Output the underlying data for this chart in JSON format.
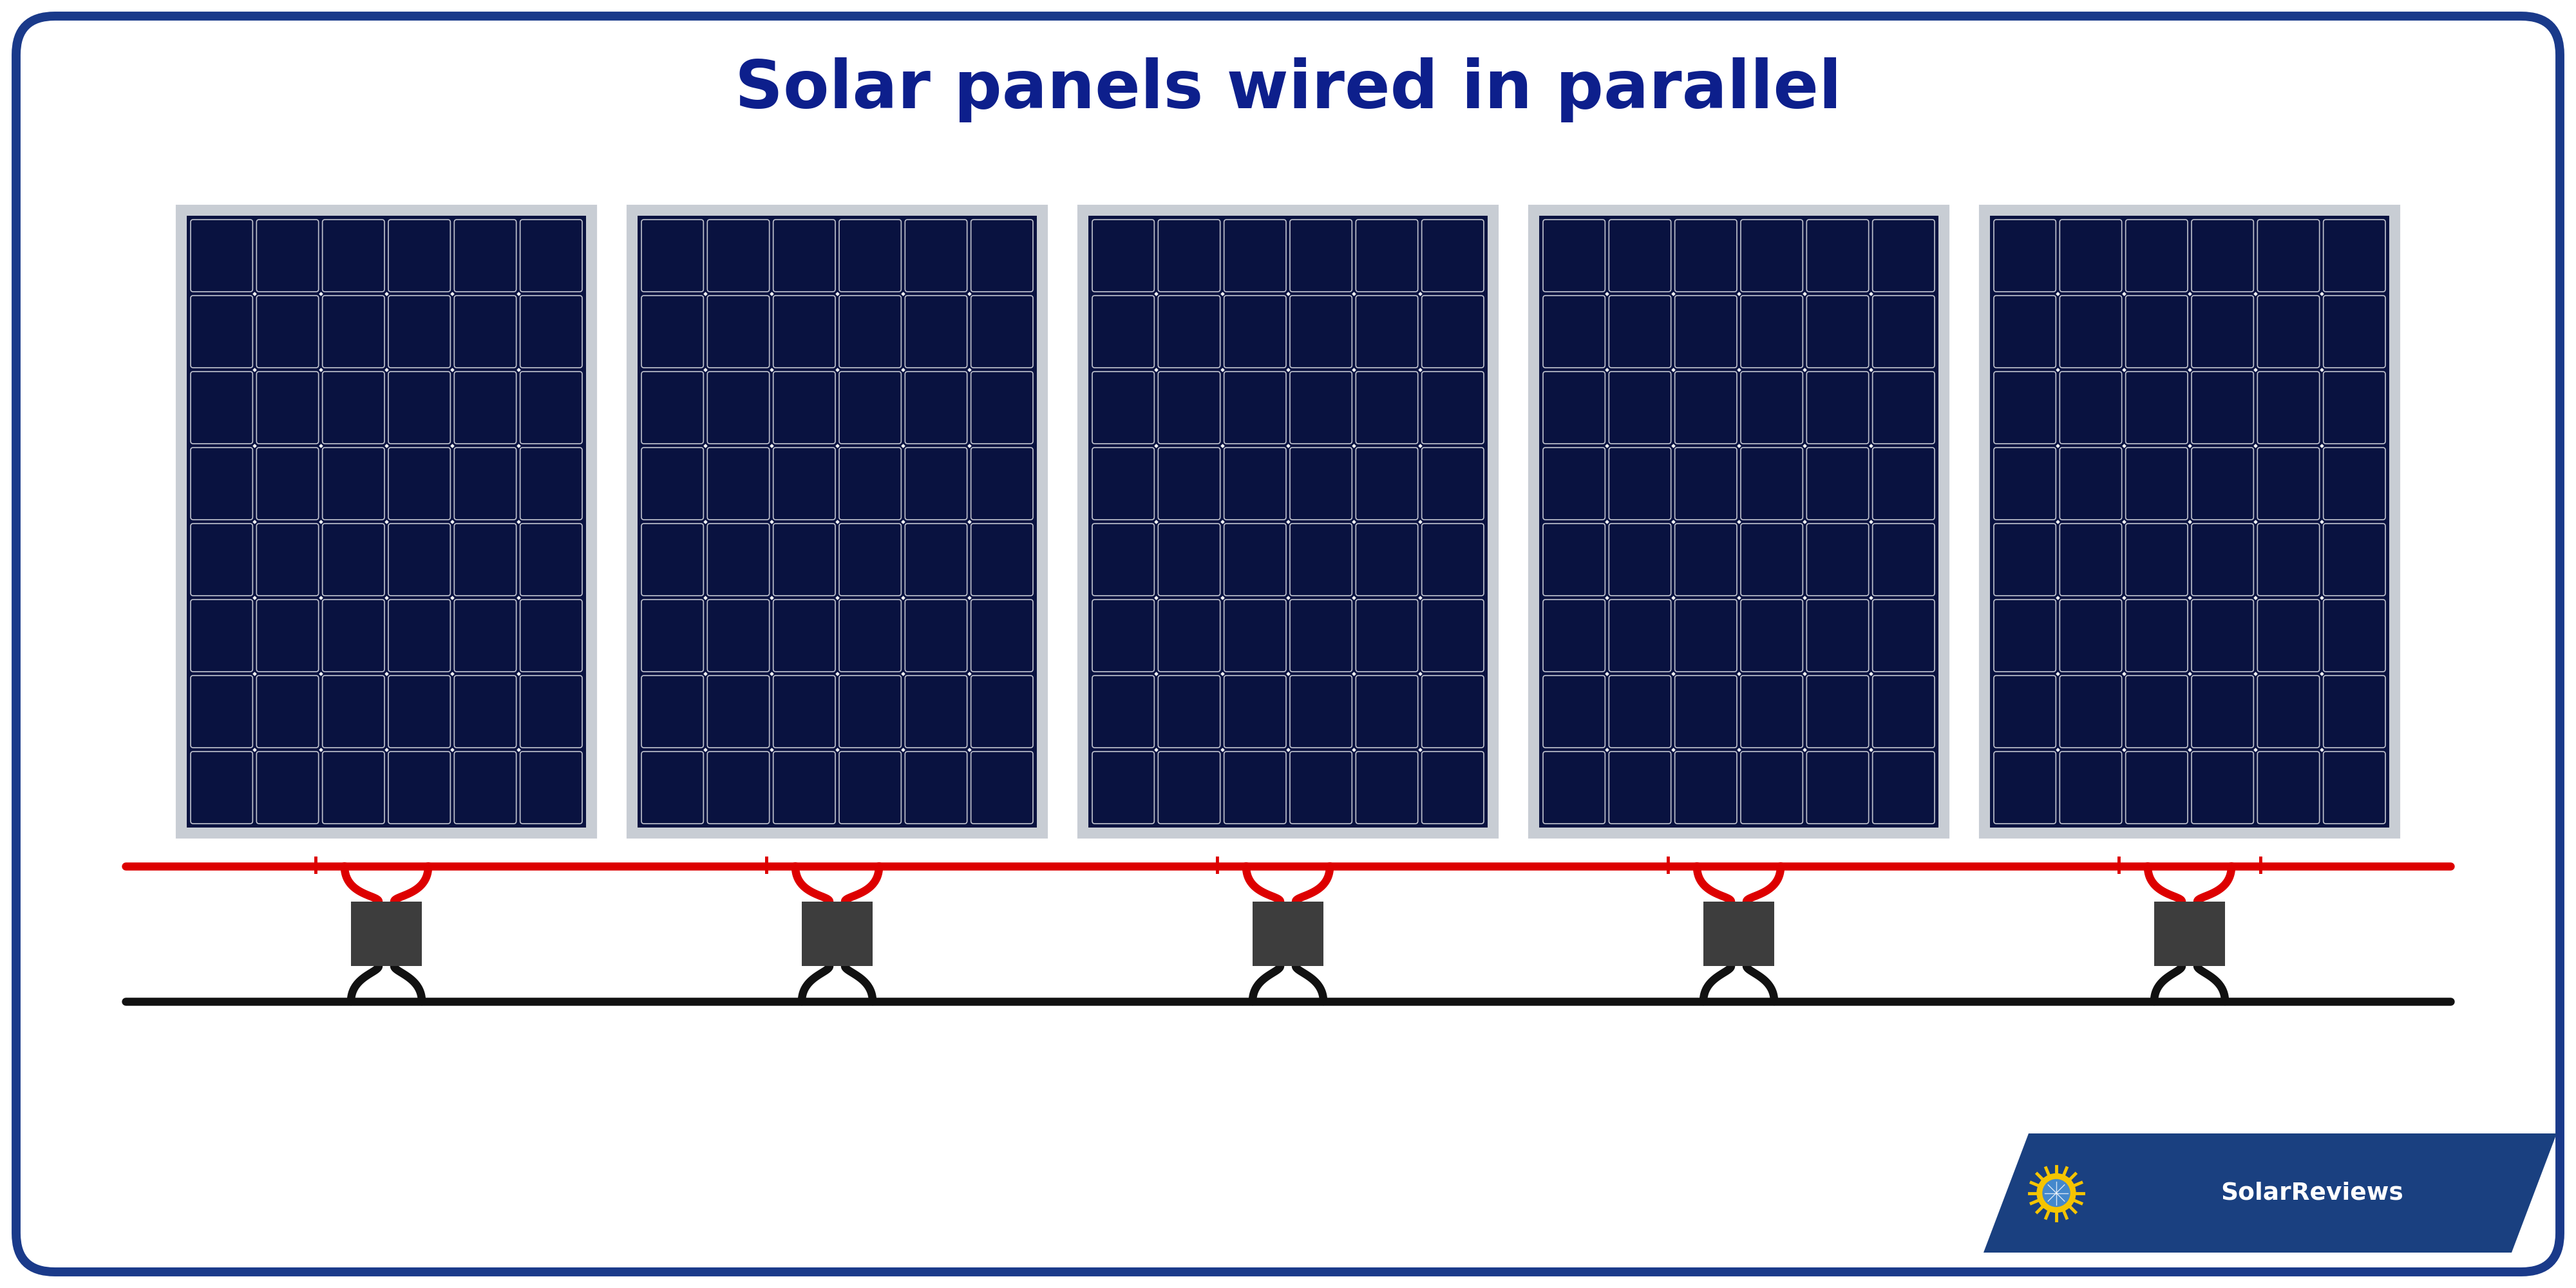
{
  "title": "Solar panels wired in parallel",
  "title_color": "#0d1f8c",
  "title_fontsize": 75,
  "bg_color": "#ffffff",
  "border_color": "#1a3a8a",
  "border_lw": 10,
  "num_panels": 5,
  "panel_color_dark": "#091240",
  "panel_frame_color": "#c8cdd4",
  "panel_frame_lw": 3,
  "cell_line_color": "#ffffff",
  "cell_line_alpha": 0.85,
  "cell_line_lw": 1.5,
  "cell_rows": 8,
  "cell_cols": 6,
  "connector_color": "#3d3d3d",
  "red_wire_color": "#dd0000",
  "black_wire_color": "#111111",
  "red_wire_lw": 9,
  "black_wire_lw": 9,
  "plus_color": "#dd0000",
  "minus_color": "#111111",
  "logo_bg_color": "#1a4080",
  "logo_text_color": "#ffffff",
  "solar_reviews_text": "SolarReviews"
}
